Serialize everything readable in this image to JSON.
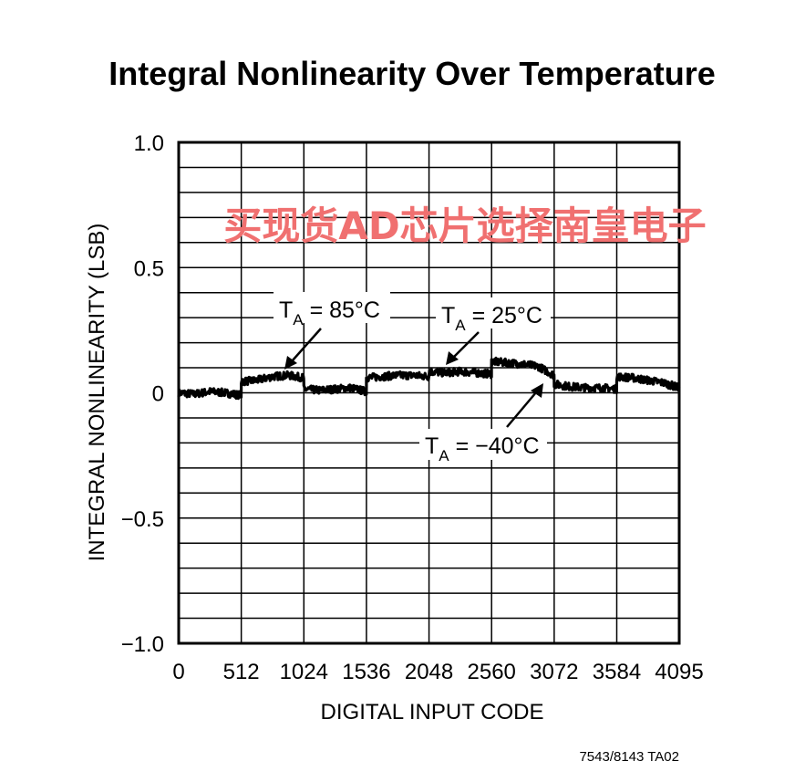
{
  "watermark": "买现货AD芯片选择南皇电子",
  "figure_code": "7543/8143 TA02",
  "chart_data": {
    "type": "line",
    "title": "Integral Nonlinearity Over Temperature",
    "xlabel": "DIGITAL INPUT CODE",
    "ylabel": "INTEGRAL NONLINEARITY (LSB)",
    "xlim": [
      0,
      4095
    ],
    "ylim": [
      -1.0,
      1.0
    ],
    "x_ticks": [
      0,
      512,
      1024,
      1536,
      2048,
      2560,
      3072,
      3584,
      4095
    ],
    "x_tick_labels": [
      "0",
      "512",
      "1024",
      "1536",
      "2048",
      "2560",
      "3072",
      "3584",
      "4095"
    ],
    "y_ticks": [
      1.0,
      0.5,
      0,
      -0.5,
      -1.0
    ],
    "y_tick_labels": [
      "1.0",
      "0.5",
      "0",
      "−0.5",
      "−1.0"
    ],
    "grid": true,
    "legend": "none",
    "series": [
      {
        "x": [
          0,
          128,
          256,
          384,
          511,
          512,
          640,
          768,
          896,
          1023,
          1024,
          1152,
          1280,
          1408,
          1535,
          1536,
          1664,
          1792,
          1920,
          2047,
          2048,
          2176,
          2304,
          2432,
          2559,
          2560,
          2688,
          2816,
          2944,
          3071,
          3072,
          3200,
          3328,
          3456,
          3583,
          3584,
          3712,
          3840,
          3968,
          4095
        ],
        "y": [
          0.0,
          -0.005,
          0.005,
          0.0,
          -0.01,
          0.045,
          0.05,
          0.065,
          0.07,
          0.06,
          0.015,
          0.01,
          0.015,
          0.02,
          0.005,
          0.06,
          0.065,
          0.07,
          0.07,
          0.065,
          0.085,
          0.08,
          0.085,
          0.08,
          0.075,
          0.125,
          0.12,
          0.115,
          0.105,
          0.07,
          0.035,
          0.025,
          0.02,
          0.02,
          0.015,
          0.065,
          0.06,
          0.05,
          0.04,
          0.02
        ]
      }
    ],
    "annotations": [
      {
        "text": "T",
        "sub": "A",
        "rest": " = 85°C"
      },
      {
        "text": "T",
        "sub": "A",
        "rest": " = 25°C"
      },
      {
        "text": "T",
        "sub": "A",
        "rest": " = −40°C"
      }
    ]
  }
}
